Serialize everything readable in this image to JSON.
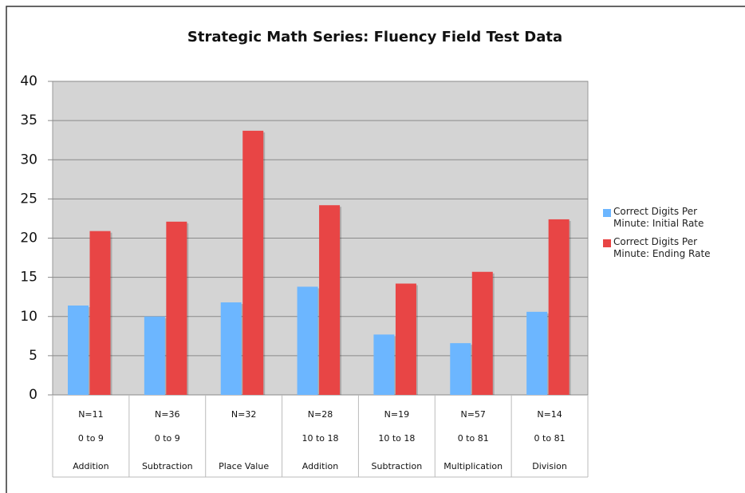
{
  "chart_data": {
    "type": "bar",
    "title": "Strategic Math Series: Fluency Field Test Data",
    "categories": [
      [
        "N=11",
        "0 to 9",
        "Addition"
      ],
      [
        "N=36",
        "0 to 9",
        "Subtraction"
      ],
      [
        "N=32",
        null,
        "Place Value"
      ],
      [
        "N=28",
        "10 to 18",
        "Addition"
      ],
      [
        "N=19",
        "10 to 18",
        "Subtraction"
      ],
      [
        "N=57",
        "0 to 81",
        "Multiplication"
      ],
      [
        "N=14",
        "0 to 81",
        "Division"
      ]
    ],
    "series": [
      {
        "name": "Correct Digits Per Minute: Initial Rate",
        "color": "#6cb6ff",
        "values": [
          11.4,
          10,
          11.8,
          13.8,
          7.7,
          6.6,
          10.6
        ]
      },
      {
        "name": "Correct Digits Per Minute: Ending Rate",
        "color": "#e84545",
        "values": [
          20.9,
          22.1,
          33.7,
          24.2,
          14.2,
          15.7,
          22.4
        ]
      }
    ],
    "ylim": [
      0,
      40
    ],
    "yticks": [
      0,
      5,
      10,
      15,
      20,
      25,
      30,
      35,
      40
    ],
    "grid": true,
    "legend": "right"
  }
}
